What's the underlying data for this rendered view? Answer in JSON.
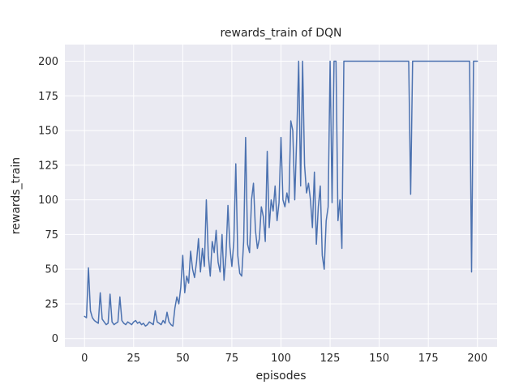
{
  "chart_data": {
    "type": "line",
    "title": "rewards_train of DQN",
    "xlabel": "episodes",
    "ylabel": "rewards_train",
    "legend": "none",
    "grid": true,
    "xlim": [
      -10,
      210
    ],
    "ylim": [
      -6,
      212
    ],
    "xticks": [
      0,
      25,
      50,
      75,
      100,
      125,
      150,
      175,
      200
    ],
    "yticks": [
      0,
      25,
      50,
      75,
      100,
      125,
      150,
      175,
      200
    ],
    "style": {
      "fig_bg": "#ffffff",
      "axes_bg": "#eaeaf2",
      "grid_color": "#ffffff",
      "line_color": "#4c72b0",
      "text_color": "#262626",
      "line_width": 1.5
    },
    "series": [
      {
        "name": "rewards_train",
        "color": "#4c72b0",
        "x_start": 0,
        "x_step": 1,
        "values": [
          16,
          15,
          51,
          20,
          15,
          13,
          12,
          11,
          33,
          14,
          12,
          10,
          11,
          32,
          12,
          10,
          11,
          12,
          30,
          13,
          11,
          10,
          12,
          11,
          10,
          12,
          13,
          11,
          12,
          10,
          11,
          9,
          10,
          12,
          11,
          10,
          20,
          12,
          11,
          10,
          13,
          11,
          19,
          12,
          10,
          9,
          22,
          30,
          25,
          37,
          60,
          33,
          45,
          40,
          63,
          50,
          44,
          55,
          72,
          48,
          65,
          52,
          100,
          60,
          45,
          70,
          62,
          78,
          55,
          48,
          75,
          42,
          60,
          96,
          66,
          52,
          70,
          126,
          60,
          47,
          45,
          70,
          145,
          68,
          62,
          100,
          112,
          78,
          65,
          72,
          95,
          88,
          70,
          135,
          80,
          100,
          92,
          110,
          85,
          98,
          145,
          100,
          95,
          105,
          98,
          157,
          150,
          100,
          145,
          200,
          110,
          200,
          125,
          105,
          112,
          100,
          80,
          120,
          68,
          95,
          110,
          60,
          50,
          85,
          95,
          200,
          98,
          200,
          200,
          85,
          100,
          65,
          200,
          200,
          200,
          200,
          200,
          200,
          200,
          200,
          200,
          200,
          200,
          200,
          200,
          200,
          200,
          200,
          200,
          200,
          200,
          200,
          200,
          200,
          200,
          200,
          200,
          200,
          200,
          200,
          200,
          200,
          200,
          200,
          200,
          200,
          104,
          200,
          200,
          200,
          200,
          200,
          200,
          200,
          200,
          200,
          200,
          200,
          200,
          200,
          200,
          200,
          200,
          200,
          200,
          200,
          200,
          200,
          200,
          200,
          200,
          200,
          200,
          200,
          200,
          200,
          200,
          48,
          200,
          200,
          200
        ]
      }
    ]
  }
}
